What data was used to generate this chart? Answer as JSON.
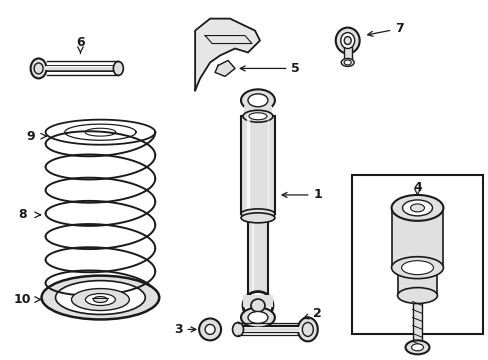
{
  "bg_color": "#ffffff",
  "line_color": "#1a1a1a",
  "gray_fill": "#c8c8c8",
  "light_gray": "#e0e0e0",
  "fig_width": 4.89,
  "fig_height": 3.6,
  "dpi": 100
}
